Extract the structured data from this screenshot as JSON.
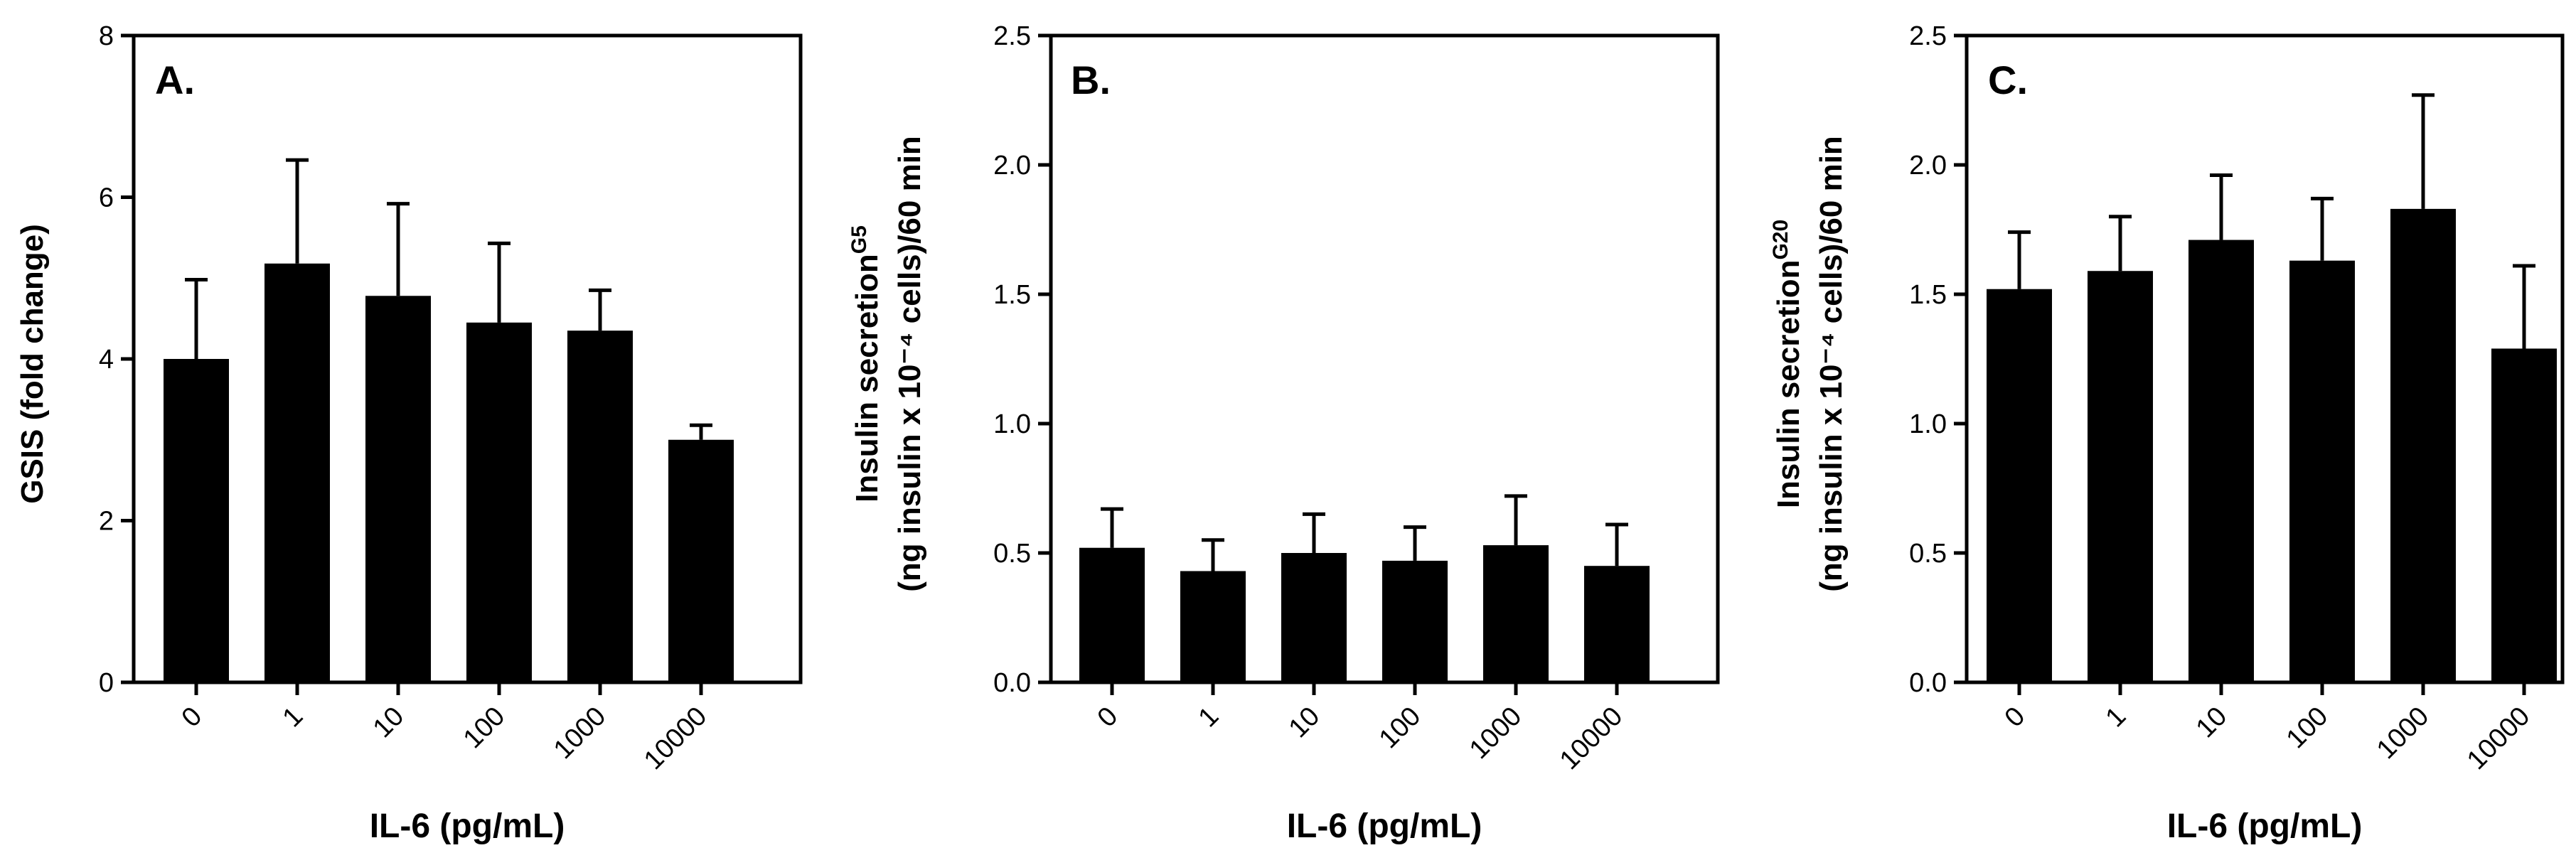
{
  "chart_data": [
    {
      "type": "bar",
      "panel": "A.",
      "categories": [
        "0",
        "1",
        "10",
        "100",
        "1000",
        "10000"
      ],
      "values": [
        4.0,
        5.18,
        4.78,
        4.45,
        4.35,
        3.0
      ],
      "errors": [
        0.98,
        1.28,
        1.14,
        0.98,
        0.5,
        0.18
      ],
      "xlabel": "IL-6 (pg/mL)",
      "ylabel": {
        "main": "GSIS (fold change)",
        "sup": "",
        "line2": ""
      },
      "ylim": [
        0,
        8
      ],
      "yticks": [
        "0",
        "2",
        "4",
        "6",
        "8"
      ],
      "bar_color": "#000000"
    },
    {
      "type": "bar",
      "panel": "B.",
      "categories": [
        "0",
        "1",
        "10",
        "100",
        "1000",
        "10000"
      ],
      "values": [
        0.52,
        0.43,
        0.5,
        0.47,
        0.53,
        0.45
      ],
      "errors": [
        0.15,
        0.12,
        0.15,
        0.13,
        0.19,
        0.16
      ],
      "xlabel": "IL-6 (pg/mL)",
      "ylabel": {
        "main": "Insulin secretion",
        "sup": "G5",
        "line2": "(ng insulin x 10⁻⁴ cells)/60 min"
      },
      "ylim": [
        0,
        2.5
      ],
      "yticks": [
        "0.0",
        "0.5",
        "1.0",
        "1.5",
        "2.0",
        "2.5"
      ],
      "bar_color": "#000000"
    },
    {
      "type": "bar",
      "panel": "C.",
      "categories": [
        "0",
        "1",
        "10",
        "100",
        "1000",
        "10000"
      ],
      "values": [
        1.52,
        1.59,
        1.71,
        1.63,
        1.83,
        1.29
      ],
      "errors": [
        0.22,
        0.21,
        0.25,
        0.24,
        0.44,
        0.32
      ],
      "xlabel": "IL-6 (pg/mL)",
      "ylabel": {
        "main": "Insulin secretion",
        "sup": "G20",
        "line2": "(ng insulin x 10⁻⁴ cells)/60 min"
      },
      "ylim": [
        0,
        2.5
      ],
      "yticks": [
        "0.0",
        "0.5",
        "1.0",
        "1.5",
        "2.0",
        "2.5"
      ],
      "bar_color": "#000000"
    }
  ]
}
